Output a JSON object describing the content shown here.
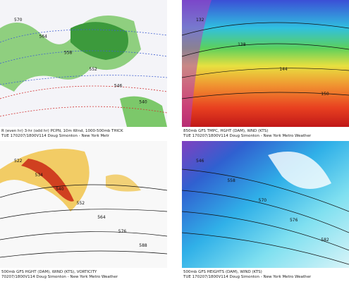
{
  "panels": [
    {
      "caption": [
        "R (even hr) 3-hr (odd hr) PCPN, 10m Wind, 1000-500mb THICK",
        "TUE 170207/1800V114 Doug Simonton - New York Metr"
      ],
      "labels": [
        "570",
        "564",
        "558",
        "552",
        "546",
        "540"
      ]
    },
    {
      "caption": [
        "850mb GFS TMPC, HGHT (DAM), WND (KTS)",
        "TUE 170207/1800V114 Doug Simonton - New York Metro Weather"
      ],
      "labels": [
        "132",
        "138",
        "144",
        "150"
      ]
    },
    {
      "caption": [
        "500mb GFS HGHT (DAM), WIND (KTS), VORTICITY",
        "70207/1800V114 Doug Simonton - New York Metro Weather"
      ],
      "labels": [
        "522",
        "534",
        "540",
        "552",
        "564",
        "576",
        "588"
      ]
    },
    {
      "caption": [
        "500mb GFS HEIGHTS (DAM), WIND (KTS)",
        "TUE 170207/1800V114 Doug Simonton - New York Metro Weather"
      ],
      "labels": [
        "546",
        "558",
        "570",
        "576",
        "582"
      ]
    }
  ]
}
